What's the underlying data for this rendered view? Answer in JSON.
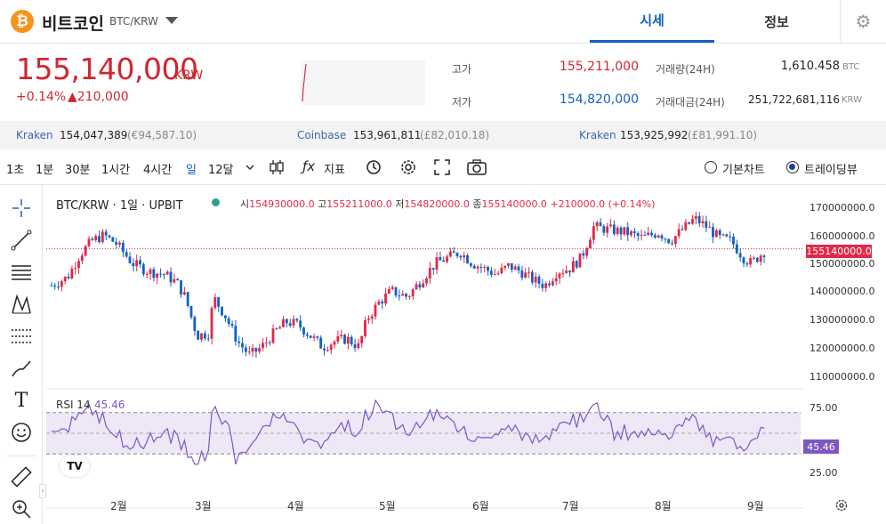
{
  "header": {
    "coin_icon": "₿",
    "coin_name": "비트코인",
    "coin_pair": "BTC/KRW",
    "tabs": [
      {
        "label": "시세"
      },
      {
        "label": "정보"
      }
    ],
    "settings_icon": "gear-icon"
  },
  "ticker": {
    "price": "155,140,000",
    "unit": "KRW",
    "change_pct": "+0.14%",
    "change_abs": "▲210,000",
    "high_label": "고가",
    "high_value": "155,211,000",
    "low_label": "저가",
    "low_value": "154,820,000",
    "volume_label": "거래량(24H)",
    "volume_value": "1,610.458",
    "volume_unit": "BTC",
    "amount_label": "거래대금(24H)",
    "amount_value": "251,722,681,116",
    "amount_unit": "KRW"
  },
  "exchanges": [
    {
      "name": "Kraken",
      "price": "154,047,389",
      "usd": "(€94,587.10)"
    },
    {
      "name": "Coinbase",
      "price": "153,961,811",
      "usd": "(£82,010.18)"
    },
    {
      "name": "Kraken",
      "price": "153,925,992",
      "usd": "(£81,991.10)"
    }
  ],
  "toolbar": {
    "intervals": [
      "1초",
      "1분",
      "30분",
      "1시간",
      "4시간",
      "일",
      "12달"
    ],
    "active_interval": "일",
    "indicator_label": "지표",
    "basic_chart": "기본차트",
    "tradingview": "트레이딩뷰"
  },
  "chart": {
    "title": "BTC/KRW · 1일 · UPBIT",
    "ohlc": {
      "o_key": "시",
      "o": "154930000.0",
      "h_key": "고",
      "h": "155211000.0",
      "l_key": "저",
      "l": "154820000.0",
      "c_key": "종",
      "c": "155140000.0",
      "change": "+210000.0 (+0.14%)"
    },
    "current_price_tag": "155140000.0",
    "y_ticks": [
      "170000000.0",
      "160000000.0",
      "150000000.0",
      "140000000.0",
      "130000000.0",
      "120000000.0",
      "110000000.0"
    ],
    "x_ticks": [
      "2월",
      "3월",
      "4월",
      "5월",
      "6월",
      "7월",
      "8월",
      "9월"
    ],
    "rsi_label": "RSI 14",
    "rsi_value": "45.46",
    "rsi_ticks": [
      "75.00",
      "25.00"
    ],
    "logo_text": "TV",
    "up_color": "#e0294a",
    "down_color": "#1261c4",
    "rsi_color": "#7e57c2"
  }
}
